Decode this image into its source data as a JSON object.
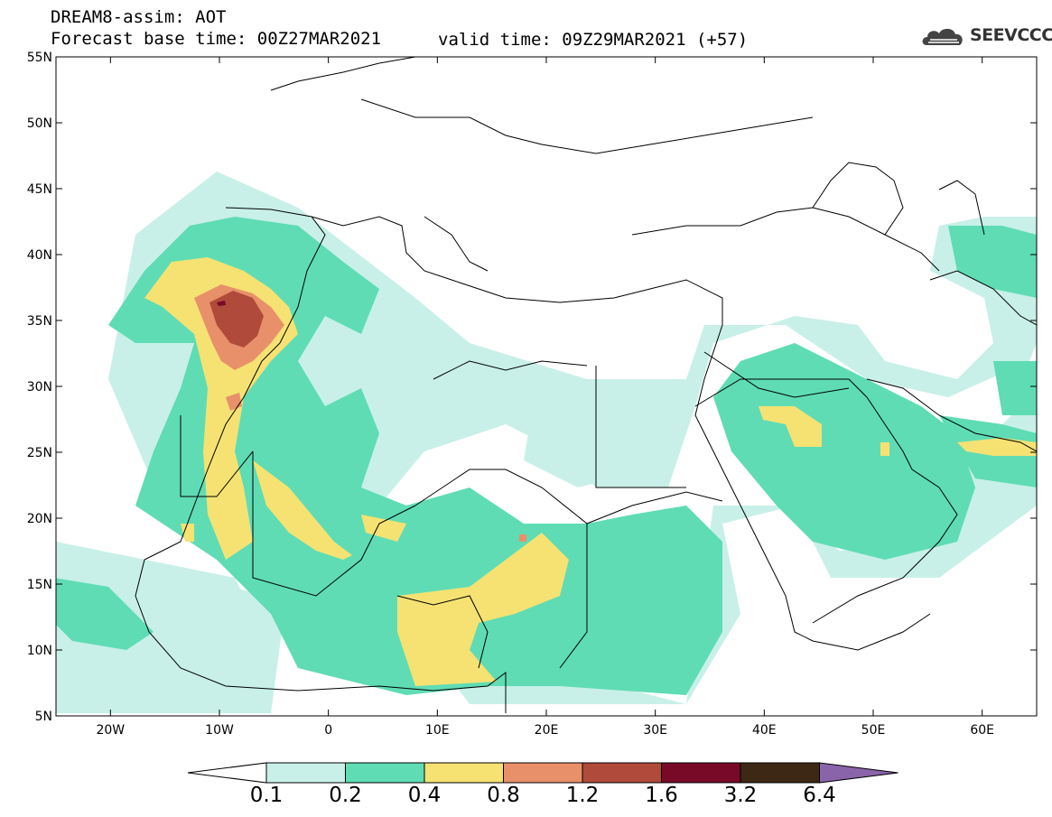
{
  "header": {
    "title": "DREAM8-assim: AOT",
    "base_time": "Forecast base time: 00Z27MAR2021",
    "valid_time": "valid time: 09Z29MAR2021 (+57)",
    "logo_text": "SEEVCCC"
  },
  "map": {
    "projection": "lat-lon",
    "lon_range": [
      -25,
      65
    ],
    "lat_range": [
      5,
      55
    ],
    "lat_labels": [
      "55N",
      "50N",
      "45N",
      "40N",
      "35N",
      "30N",
      "25N",
      "20N",
      "15N",
      "10N",
      "5N"
    ],
    "lon_labels": [
      "20W",
      "10W",
      "0",
      "10E",
      "20E",
      "30E",
      "40E",
      "50E",
      "60E"
    ]
  },
  "legend": {
    "variable": "AOT",
    "levels": [
      "0.1",
      "0.2",
      "0.4",
      "0.8",
      "1.2",
      "1.6",
      "3.2",
      "6.4"
    ],
    "colors": [
      "#ffffff",
      "#c8f0e8",
      "#5fdcb4",
      "#f5e273",
      "#e8906a",
      "#b04a3a",
      "#780a28",
      "#3c2814",
      "#8a64aa"
    ]
  }
}
